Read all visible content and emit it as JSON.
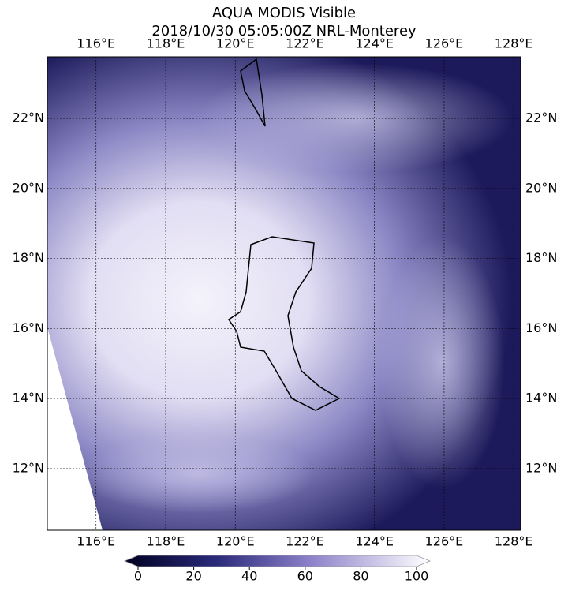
{
  "map": {
    "title": "AQUA MODIS Visible",
    "subtitle": "2018/10/30 05:05:00Z NRL-Monterey",
    "lonlim": [
      114.6,
      128.2
    ],
    "latlim": [
      10.24,
      23.76
    ],
    "lonticks": [
      {
        "value": 116,
        "label": "116°E"
      },
      {
        "value": 118,
        "label": "118°E"
      },
      {
        "value": 120,
        "label": "120°E"
      },
      {
        "value": 122,
        "label": "122°E"
      },
      {
        "value": 124,
        "label": "124°E"
      },
      {
        "value": 126,
        "label": "126°E"
      },
      {
        "value": 128,
        "label": "128°E"
      }
    ],
    "latticks": [
      {
        "value": 12,
        "label": "12°N"
      },
      {
        "value": 14,
        "label": "14°N"
      },
      {
        "value": 16,
        "label": "16°N"
      },
      {
        "value": 18,
        "label": "18°N"
      },
      {
        "value": 20,
        "label": "20°N"
      },
      {
        "value": 22,
        "label": "22°N"
      }
    ],
    "colorbar": {
      "lim": [
        0,
        100
      ],
      "ticks": [
        0,
        20,
        40,
        60,
        80,
        100
      ]
    }
  }
}
